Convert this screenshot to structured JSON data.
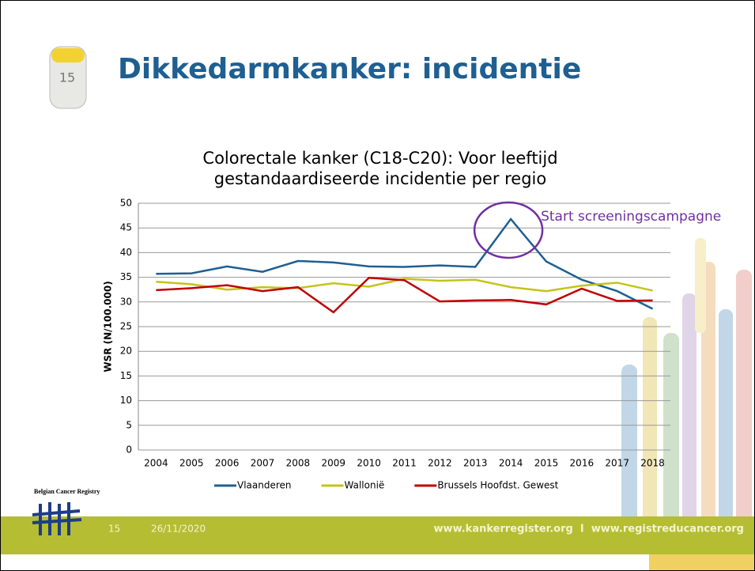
{
  "slide": {
    "title": "Dikkedarmkanker: incidentie",
    "icon_label": "15",
    "logo_text": "Belgian Cancer Registry",
    "slide_number": "15",
    "date": "26/11/2020",
    "footer_links": "www.kankerregister.org  I  www.registreducancer.org"
  },
  "chart_data": {
    "type": "line",
    "title": "Colorectale kanker (C18-C20): Voor leeftijd gestandaardiseerde incidentie per regio",
    "y_label": "WSR (N/100.000)",
    "annotation": "Start screeningscampagne",
    "categories": [
      "2004",
      "2005",
      "2006",
      "2007",
      "2008",
      "2009",
      "2010",
      "2011",
      "2012",
      "2013",
      "2014",
      "2015",
      "2016",
      "2017",
      "2018"
    ],
    "series": [
      {
        "name": "Vlaanderen",
        "color": "#1f5f91",
        "values": [
          35.7,
          35.8,
          37.2,
          36.1,
          38.3,
          38.0,
          37.2,
          37.1,
          37.4,
          37.1,
          46.8,
          38.2,
          34.5,
          32.2,
          28.6
        ]
      },
      {
        "name": "Wallonië",
        "color": "#c4c41a",
        "values": [
          34.1,
          33.6,
          32.5,
          33.0,
          32.8,
          33.8,
          33.1,
          34.7,
          34.3,
          34.5,
          33.0,
          32.2,
          33.3,
          33.9,
          32.3
        ]
      },
      {
        "name": "Brussels Hoofdst. Gewest",
        "color": "#c00000",
        "values": [
          32.4,
          32.8,
          33.4,
          32.2,
          33.0,
          27.9,
          34.9,
          34.4,
          30.1,
          30.3,
          30.4,
          29.5,
          32.7,
          30.2,
          30.3
        ]
      }
    ],
    "ylim": [
      0,
      50
    ],
    "yticks": [
      0,
      5,
      10,
      15,
      20,
      25,
      30,
      35,
      40,
      45,
      50
    ],
    "grid": true,
    "legend": "bottom"
  }
}
